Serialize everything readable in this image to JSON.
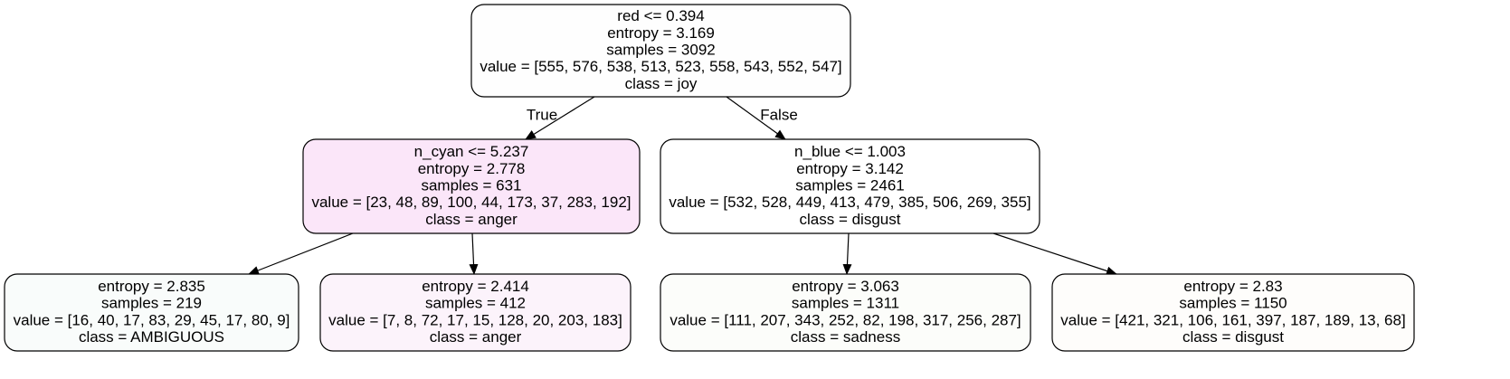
{
  "nodes": [
    {
      "id": "root",
      "fill": "#fefefe",
      "lines": [
        "red <= 0.394",
        "entropy = 3.169",
        "samples = 3092",
        "value = [555, 576, 538, 513, 523, 558, 543, 552, 547]",
        "class = joy"
      ]
    },
    {
      "id": "left",
      "fill": "#fbe6f9",
      "lines": [
        "n_cyan <= 5.237",
        "entropy = 2.778",
        "samples = 631",
        "value = [23, 48, 89, 100, 44, 173, 37, 283, 192]",
        "class = anger"
      ]
    },
    {
      "id": "right",
      "fill": "#ffffff",
      "lines": [
        "n_blue <= 1.003",
        "entropy = 3.142",
        "samples = 2461",
        "value = [532, 528, 449, 413, 479, 385, 506, 269, 355]",
        "class = disgust"
      ]
    },
    {
      "id": "left-left",
      "fill": "#f9fcfb",
      "lines": [
        "entropy = 2.835",
        "samples = 219",
        "value = [16, 40, 17, 83, 29, 45, 17, 80, 9]",
        "class = AMBIGUOUS"
      ]
    },
    {
      "id": "left-right",
      "fill": "#fcf3fb",
      "lines": [
        "entropy = 2.414",
        "samples = 412",
        "value = [7, 8, 72, 17, 15, 128, 20, 203, 183]",
        "class = anger"
      ]
    },
    {
      "id": "right-left",
      "fill": "#fcfdfa",
      "lines": [
        "entropy = 3.063",
        "samples = 1311",
        "value = [111, 207, 343, 252, 82, 198, 317, 256, 287]",
        "class = sadness"
      ]
    },
    {
      "id": "right-right",
      "fill": "#fefdfb",
      "lines": [
        "entropy = 2.83",
        "samples = 1150",
        "value = [421, 321, 106, 161, 397, 187, 189, 13, 68]",
        "class = disgust"
      ]
    }
  ],
  "edges": [
    {
      "from": "root",
      "to": "left",
      "label": "True"
    },
    {
      "from": "root",
      "to": "right",
      "label": "False"
    },
    {
      "from": "left",
      "to": "left-left",
      "label": ""
    },
    {
      "from": "left",
      "to": "left-right",
      "label": ""
    },
    {
      "from": "right",
      "to": "right-left",
      "label": ""
    },
    {
      "from": "right",
      "to": "right-right",
      "label": ""
    }
  ]
}
